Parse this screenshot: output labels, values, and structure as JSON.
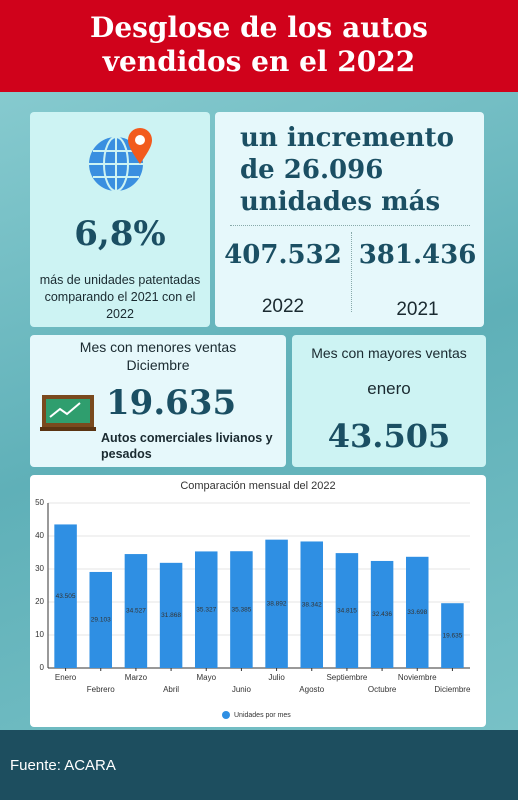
{
  "header": {
    "title": "Desglose de los autos vendidos en el 2022"
  },
  "cards": {
    "growth": {
      "percent": "6,8%",
      "text": "más de unidades patentadas comparando el 2021 con el 2022"
    },
    "increase": {
      "headline": "un incremento de 26.096 unidades más",
      "value_a": "407.532",
      "year_a": "2022",
      "value_b": "381.436",
      "year_b": "2021"
    },
    "lowest": {
      "heading": "Mes con menores ventas",
      "month": "Diciembre",
      "value": "19.635",
      "note": "Autos comerciales livianos y pesados"
    },
    "highest": {
      "heading": "Mes con mayores ventas",
      "month": "enero",
      "value": "43.505"
    }
  },
  "chart_data": {
    "type": "bar",
    "title": "Comparación mensual del 2022",
    "categories": [
      "Enero",
      "Febrero",
      "Marzo",
      "Abril",
      "Mayo",
      "Junio",
      "Julio",
      "Agosto",
      "Septiembre",
      "Octubre",
      "Noviembre",
      "Diciembre"
    ],
    "series": [
      {
        "name": "Unidades por mes",
        "color": "#2f8fe3",
        "values": [
          43.505,
          29.103,
          34.527,
          31.868,
          35.327,
          35.385,
          38.892,
          38.342,
          34.815,
          32.436,
          33.698,
          19.635
        ]
      }
    ],
    "ylim": [
      0,
      50
    ],
    "yticks": [
      0,
      10,
      20,
      30,
      40,
      50
    ],
    "grid": true,
    "legend": "bottom"
  },
  "footer": {
    "source": "Fuente: ACARA"
  }
}
